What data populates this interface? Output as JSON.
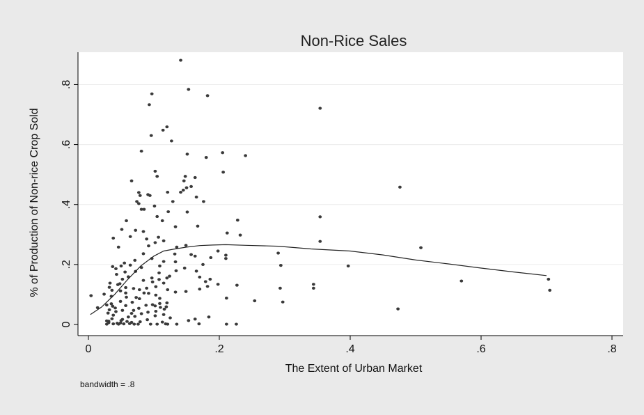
{
  "chart_data": {
    "type": "scatter",
    "title": "Non-Rice Sales",
    "xlabel": "The Extent of Urban Market",
    "ylabel": "% of Production of Non-rice Crop Sold",
    "note": "bandwidth = .8",
    "xlim": [
      0,
      0.8
    ],
    "ylim": [
      0,
      0.88
    ],
    "x_ticks": [
      {
        "value": 0,
        "label": "0"
      },
      {
        "value": 0.2,
        "label": ".2"
      },
      {
        "value": 0.4,
        "label": ".4"
      },
      {
        "value": 0.6,
        "label": ".6"
      },
      {
        "value": 0.8,
        "label": ".8"
      }
    ],
    "y_ticks": [
      {
        "value": 0,
        "label": "0"
      },
      {
        "value": 0.2,
        "label": ".2"
      },
      {
        "value": 0.4,
        "label": ".4"
      },
      {
        "value": 0.6,
        "label": ".6"
      },
      {
        "value": 0.8,
        "label": ".8"
      }
    ],
    "grid": "horizontal",
    "legend": "none",
    "colors": {
      "background": "#eaeaea",
      "plot_bg": "#ffffff",
      "marker": "#3a3a3a",
      "line": "#222222",
      "grid": "#ececec"
    },
    "points": [
      [
        0.141,
        0.881
      ],
      [
        0.153,
        0.784
      ],
      [
        0.097,
        0.769
      ],
      [
        0.182,
        0.763
      ],
      [
        0.093,
        0.733
      ],
      [
        0.354,
        0.721
      ],
      [
        0.12,
        0.659
      ],
      [
        0.114,
        0.648
      ],
      [
        0.096,
        0.63
      ],
      [
        0.127,
        0.612
      ],
      [
        0.081,
        0.578
      ],
      [
        0.205,
        0.573
      ],
      [
        0.151,
        0.568
      ],
      [
        0.24,
        0.563
      ],
      [
        0.18,
        0.557
      ],
      [
        0.102,
        0.511
      ],
      [
        0.206,
        0.508
      ],
      [
        0.105,
        0.494
      ],
      [
        0.148,
        0.494
      ],
      [
        0.163,
        0.49
      ],
      [
        0.146,
        0.479
      ],
      [
        0.066,
        0.479
      ],
      [
        0.157,
        0.46
      ],
      [
        0.476,
        0.458
      ],
      [
        0.15,
        0.456
      ],
      [
        0.145,
        0.448
      ],
      [
        0.141,
        0.441
      ],
      [
        0.121,
        0.441
      ],
      [
        0.077,
        0.44
      ],
      [
        0.091,
        0.433
      ],
      [
        0.079,
        0.43
      ],
      [
        0.094,
        0.43
      ],
      [
        0.165,
        0.425
      ],
      [
        0.074,
        0.41
      ],
      [
        0.129,
        0.41
      ],
      [
        0.176,
        0.41
      ],
      [
        0.077,
        0.403
      ],
      [
        0.101,
        0.395
      ],
      [
        0.081,
        0.384
      ],
      [
        0.085,
        0.384
      ],
      [
        0.122,
        0.376
      ],
      [
        0.151,
        0.375
      ],
      [
        0.105,
        0.36
      ],
      [
        0.354,
        0.359
      ],
      [
        0.228,
        0.348
      ],
      [
        0.113,
        0.346
      ],
      [
        0.058,
        0.346
      ],
      [
        0.167,
        0.328
      ],
      [
        0.133,
        0.326
      ],
      [
        0.051,
        0.317
      ],
      [
        0.072,
        0.314
      ],
      [
        0.084,
        0.31
      ],
      [
        0.212,
        0.305
      ],
      [
        0.232,
        0.298
      ],
      [
        0.064,
        0.293
      ],
      [
        0.107,
        0.291
      ],
      [
        0.038,
        0.288
      ],
      [
        0.089,
        0.285
      ],
      [
        0.115,
        0.279
      ],
      [
        0.354,
        0.277
      ],
      [
        0.102,
        0.273
      ],
      [
        0.149,
        0.264
      ],
      [
        0.092,
        0.262
      ],
      [
        0.046,
        0.258
      ],
      [
        0.135,
        0.258
      ],
      [
        0.508,
        0.256
      ],
      [
        0.198,
        0.245
      ],
      [
        0.29,
        0.238
      ],
      [
        0.084,
        0.236
      ],
      [
        0.132,
        0.235
      ],
      [
        0.157,
        0.233
      ],
      [
        0.21,
        0.231
      ],
      [
        0.163,
        0.228
      ],
      [
        0.187,
        0.223
      ],
      [
        0.097,
        0.22
      ],
      [
        0.21,
        0.22
      ],
      [
        0.071,
        0.214
      ],
      [
        0.115,
        0.21
      ],
      [
        0.133,
        0.209
      ],
      [
        0.055,
        0.205
      ],
      [
        0.175,
        0.2
      ],
      [
        0.064,
        0.198
      ],
      [
        0.05,
        0.195
      ],
      [
        0.109,
        0.195
      ],
      [
        0.294,
        0.197
      ],
      [
        0.397,
        0.195
      ],
      [
        0.037,
        0.193
      ],
      [
        0.081,
        0.19
      ],
      [
        0.147,
        0.188
      ],
      [
        0.042,
        0.186
      ],
      [
        0.134,
        0.179
      ],
      [
        0.165,
        0.178
      ],
      [
        0.072,
        0.177
      ],
      [
        0.056,
        0.175
      ],
      [
        0.108,
        0.172
      ],
      [
        0.043,
        0.167
      ],
      [
        0.124,
        0.161
      ],
      [
        0.061,
        0.159
      ],
      [
        0.17,
        0.158
      ],
      [
        0.097,
        0.155
      ],
      [
        0.12,
        0.155
      ],
      [
        0.052,
        0.151
      ],
      [
        0.186,
        0.151
      ],
      [
        0.108,
        0.15
      ],
      [
        0.084,
        0.147
      ],
      [
        0.57,
        0.145
      ],
      [
        0.179,
        0.143
      ],
      [
        0.098,
        0.142
      ],
      [
        0.115,
        0.138
      ],
      [
        0.033,
        0.138
      ],
      [
        0.048,
        0.136
      ],
      [
        0.045,
        0.133
      ],
      [
        0.344,
        0.134
      ],
      [
        0.198,
        0.134
      ],
      [
        0.227,
        0.131
      ],
      [
        0.182,
        0.127
      ],
      [
        0.103,
        0.126
      ],
      [
        0.032,
        0.124
      ],
      [
        0.057,
        0.123
      ],
      [
        0.089,
        0.121
      ],
      [
        0.069,
        0.12
      ],
      [
        0.344,
        0.121
      ],
      [
        0.293,
        0.121
      ],
      [
        0.17,
        0.118
      ],
      [
        0.078,
        0.116
      ],
      [
        0.121,
        0.116
      ],
      [
        0.036,
        0.114
      ],
      [
        0.705,
        0.114
      ],
      [
        0.049,
        0.112
      ],
      [
        0.149,
        0.11
      ],
      [
        0.133,
        0.108
      ],
      [
        0.057,
        0.105
      ],
      [
        0.085,
        0.105
      ],
      [
        0.092,
        0.104
      ],
      [
        0.024,
        0.101
      ],
      [
        0.103,
        0.098
      ],
      [
        0.004,
        0.096
      ],
      [
        0.035,
        0.094
      ],
      [
        0.058,
        0.091
      ],
      [
        0.073,
        0.09
      ],
      [
        0.211,
        0.088
      ],
      [
        0.109,
        0.087
      ],
      [
        0.078,
        0.086
      ],
      [
        0.254,
        0.079
      ],
      [
        0.049,
        0.077
      ],
      [
        0.297,
        0.075
      ],
      [
        0.067,
        0.074
      ],
      [
        0.12,
        0.072
      ],
      [
        0.109,
        0.07
      ],
      [
        0.035,
        0.069
      ],
      [
        0.098,
        0.066
      ],
      [
        0.028,
        0.065
      ],
      [
        0.088,
        0.064
      ],
      [
        0.057,
        0.063
      ],
      [
        0.102,
        0.062
      ],
      [
        0.037,
        0.061
      ],
      [
        0.119,
        0.059
      ],
      [
        0.11,
        0.057
      ],
      [
        0.014,
        0.056
      ],
      [
        0.041,
        0.055
      ],
      [
        0.077,
        0.054
      ],
      [
        0.473,
        0.052
      ],
      [
        0.116,
        0.051
      ],
      [
        0.032,
        0.049
      ],
      [
        0.052,
        0.047
      ],
      [
        0.069,
        0.047
      ],
      [
        0.103,
        0.044
      ],
      [
        0.042,
        0.043
      ],
      [
        0.091,
        0.041
      ],
      [
        0.03,
        0.038
      ],
      [
        0.066,
        0.037
      ],
      [
        0.081,
        0.036
      ],
      [
        0.115,
        0.033
      ],
      [
        0.038,
        0.031
      ],
      [
        0.102,
        0.029
      ],
      [
        0.071,
        0.027
      ],
      [
        0.061,
        0.025
      ],
      [
        0.184,
        0.025
      ],
      [
        0.125,
        0.022
      ],
      [
        0.036,
        0.019
      ],
      [
        0.163,
        0.018
      ],
      [
        0.052,
        0.017
      ],
      [
        0.09,
        0.016
      ],
      [
        0.05,
        0.013
      ],
      [
        0.153,
        0.013
      ],
      [
        0.028,
        0.012
      ],
      [
        0.031,
        0.011
      ],
      [
        0.059,
        0.01
      ],
      [
        0.079,
        0.009
      ],
      [
        0.113,
        0.008
      ],
      [
        0.066,
        0.007
      ],
      [
        0.031,
        0.006
      ],
      [
        0.049,
        0.005
      ],
      [
        0.044,
        0.004
      ],
      [
        0.063,
        0.003
      ],
      [
        0.169,
        0.002
      ],
      [
        0.118,
        0.002
      ],
      [
        0.038,
        0.002
      ],
      [
        0.054,
        0.002
      ],
      [
        0.076,
        0.001
      ],
      [
        0.095,
        0.001
      ],
      [
        0.121,
        0.001
      ],
      [
        0.211,
        0.001
      ],
      [
        0.226,
        0.001
      ],
      [
        0.028,
        0.001
      ],
      [
        0.046,
        0.001
      ],
      [
        0.07,
        0.001
      ],
      [
        0.105,
        0.001
      ],
      [
        0.135,
        0.001
      ],
      [
        0.703,
        0.151
      ]
    ],
    "smooth_line": [
      [
        0.003,
        0.033
      ],
      [
        0.02,
        0.058
      ],
      [
        0.04,
        0.1
      ],
      [
        0.06,
        0.15
      ],
      [
        0.08,
        0.195
      ],
      [
        0.1,
        0.228
      ],
      [
        0.115,
        0.245
      ],
      [
        0.13,
        0.251
      ],
      [
        0.15,
        0.258
      ],
      [
        0.17,
        0.263
      ],
      [
        0.19,
        0.265
      ],
      [
        0.21,
        0.266
      ],
      [
        0.24,
        0.264
      ],
      [
        0.29,
        0.261
      ],
      [
        0.34,
        0.252
      ],
      [
        0.4,
        0.245
      ],
      [
        0.45,
        0.232
      ],
      [
        0.5,
        0.215
      ],
      [
        0.55,
        0.202
      ],
      [
        0.6,
        0.188
      ],
      [
        0.65,
        0.175
      ],
      [
        0.7,
        0.163
      ]
    ]
  }
}
